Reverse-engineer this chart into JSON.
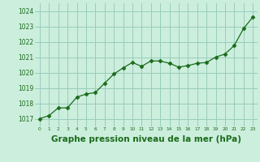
{
  "x": [
    0,
    1,
    2,
    3,
    4,
    5,
    6,
    7,
    8,
    9,
    10,
    11,
    12,
    13,
    14,
    15,
    16,
    17,
    18,
    19,
    20,
    21,
    22,
    23
  ],
  "y": [
    1017.0,
    1017.2,
    1017.7,
    1017.7,
    1018.4,
    1018.6,
    1018.7,
    1019.3,
    1019.9,
    1020.3,
    1020.65,
    1020.4,
    1020.75,
    1020.75,
    1020.6,
    1020.35,
    1020.45,
    1020.6,
    1020.65,
    1021.0,
    1021.2,
    1021.75,
    1022.85,
    1023.6
  ],
  "line_color": "#1a6b1a",
  "marker_color": "#1a6b1a",
  "bg_color": "#cceedd",
  "grid_color": "#99ccbb",
  "xlabel": "Graphe pression niveau de la mer (hPa)",
  "xlabel_fontsize": 7.5,
  "tick_label_color": "#1a6b1a",
  "ylim_min": 1016.5,
  "ylim_max": 1024.5,
  "yticks": [
    1017,
    1018,
    1019,
    1020,
    1021,
    1022,
    1023,
    1024
  ],
  "xlim_min": -0.5,
  "xlim_max": 23.5
}
